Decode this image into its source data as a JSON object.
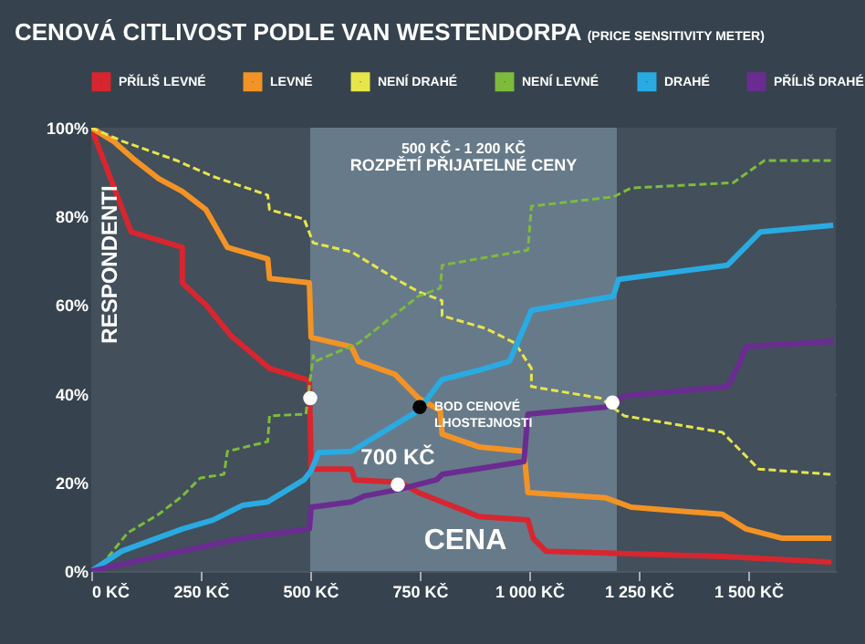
{
  "chart_data": {
    "type": "line",
    "title": "CENOVÁ CITLIVOST PODLE VAN WESTENDORPA",
    "subtitle": "(PRICE SENSITIVITY METER)",
    "xlabel": "CENA",
    "ylabel": "RESPONDENTI",
    "xlim": [
      0,
      1700
    ],
    "ylim": [
      0,
      100
    ],
    "xticks": [
      {
        "value": 0,
        "label": "0 KČ"
      },
      {
        "value": 250,
        "label": "250 KČ"
      },
      {
        "value": 500,
        "label": "500 KČ"
      },
      {
        "value": 750,
        "label": "750 KČ"
      },
      {
        "value": 1000,
        "label": "1 000 KČ"
      },
      {
        "value": 1250,
        "label": "1 250 KČ"
      },
      {
        "value": 1500,
        "label": "1 500 KČ"
      }
    ],
    "yticks": [
      {
        "value": 0,
        "label": "0%"
      },
      {
        "value": 20,
        "label": "20%"
      },
      {
        "value": 40,
        "label": "40%"
      },
      {
        "value": 60,
        "label": "60%"
      },
      {
        "value": 80,
        "label": "80%"
      },
      {
        "value": 100,
        "label": "100%"
      }
    ],
    "grid": "y",
    "legend": "top",
    "bands": [
      {
        "axis": "x",
        "from": 500,
        "to": 1200,
        "label": "ROZPĚTÍ PŘIJATELNÉ CENY",
        "color": "#677a89"
      }
    ],
    "annotations": [
      {
        "text": "BOD CENOVÉ\nLHOSTEJNOSTI",
        "x": 750,
        "y": 37
      },
      {
        "text": "700 KČ",
        "x": 700,
        "y": 20
      },
      "500 KČ - 1 200 KČ"
    ],
    "series": [
      {
        "name": "PŘÍLIŠ LEVNÉ",
        "color": "#d7262f",
        "line_style": "solid",
        "x": [
          0,
          91,
          208,
          208,
          262,
          320,
          374,
          407,
          498,
          502,
          594,
          602,
          706,
          747,
          801,
          885,
          997,
          1009,
          1038,
          1441,
          1690
        ],
        "values": [
          100,
          76.5,
          73,
          65,
          60,
          53,
          48.5,
          45.7,
          43,
          23,
          23,
          20.5,
          20,
          17.7,
          15.6,
          12.3,
          11.5,
          7.4,
          4.5,
          3.3,
          2
        ]
      },
      {
        "name": "LEVNÉ",
        "color": "#f39325",
        "line_style": "solid",
        "x": [
          0,
          50,
          96,
          154,
          208,
          262,
          311,
          403,
          407,
          498,
          502,
          594,
          610,
          693,
          747,
          797,
          801,
          885,
          988,
          997,
          1175,
          1233,
          1441,
          1495,
          1578,
          1690
        ],
        "values": [
          100,
          97,
          93,
          88.5,
          85.6,
          81.5,
          73,
          70.4,
          66,
          65,
          52.7,
          50.6,
          47.3,
          44.4,
          39,
          36.2,
          30.9,
          28,
          27,
          17.7,
          16.5,
          14.4,
          12.8,
          9.5,
          7.4,
          7.4
        ]
      },
      {
        "name": "NENÍ DRAHÉ",
        "color": "#e6e64a",
        "line_style": "dashed",
        "x": [
          0,
          70,
          195,
          278,
          403,
          407,
          486,
          507,
          594,
          693,
          747,
          801,
          801,
          901,
          968,
          1005,
          1005,
          1163,
          1217,
          1441,
          1524,
          1690
        ],
        "values": [
          100,
          97,
          92.6,
          89,
          84.8,
          81.5,
          79.4,
          74,
          72,
          66,
          63,
          61,
          57.6,
          54.7,
          51.4,
          45.7,
          41.6,
          39,
          35,
          31.3,
          23,
          21.8
        ]
      },
      {
        "name": "NENÍ LEVNÉ",
        "color": "#7dbb3c",
        "line_style": "dashed",
        "x": [
          0,
          29,
          83,
          154,
          208,
          249,
          303,
          311,
          403,
          407,
          490,
          507,
          511,
          610,
          747,
          797,
          801,
          997,
          1005,
          1192,
          1233,
          1466,
          1537,
          1694
        ],
        "values": [
          0,
          2,
          8.6,
          12.8,
          16.9,
          21,
          21.8,
          27,
          29.2,
          35,
          35.4,
          48.6,
          47.3,
          51.4,
          62,
          63.8,
          69,
          72.4,
          82.3,
          84.4,
          86.4,
          87.6,
          92.6,
          92.6
        ]
      },
      {
        "name": "DRAHÉ",
        "color": "#29abe2",
        "line_style": "solid",
        "x": [
          0,
          70,
          208,
          278,
          345,
          403,
          486,
          502,
          519,
          594,
          677,
          747,
          801,
          885,
          955,
          1005,
          1192,
          1204,
          1453,
          1528,
          1694
        ],
        "values": [
          0,
          4.5,
          9.5,
          11.5,
          14.8,
          15.6,
          20.6,
          22.6,
          26.7,
          27,
          32,
          36.2,
          43.2,
          45.3,
          47.3,
          58.8,
          62,
          65.8,
          69,
          76.5,
          78
        ]
      },
      {
        "name": "PŘÍLIŠ DRAHÉ",
        "color": "#6a2c91",
        "line_style": "solid",
        "x": [
          0,
          208,
          345,
          498,
          502,
          594,
          623,
          706,
          789,
          801,
          988,
          997,
          1175,
          1217,
          1453,
          1482,
          1495,
          1694
        ],
        "values": [
          0,
          4.5,
          7.4,
          9.5,
          14.4,
          15.6,
          16.9,
          18.5,
          20.6,
          21.8,
          24.7,
          35.4,
          37,
          39.5,
          41.6,
          47.3,
          50.6,
          51.8
        ]
      },
      {
        "type": "scatter",
        "colors": [
          "#ffffff",
          "#000000",
          "#ffffff",
          "#ffffff"
        ],
        "x": [
          500,
          750,
          700,
          1190
        ],
        "values": [
          39,
          37,
          19.5,
          38
        ]
      }
    ]
  }
}
